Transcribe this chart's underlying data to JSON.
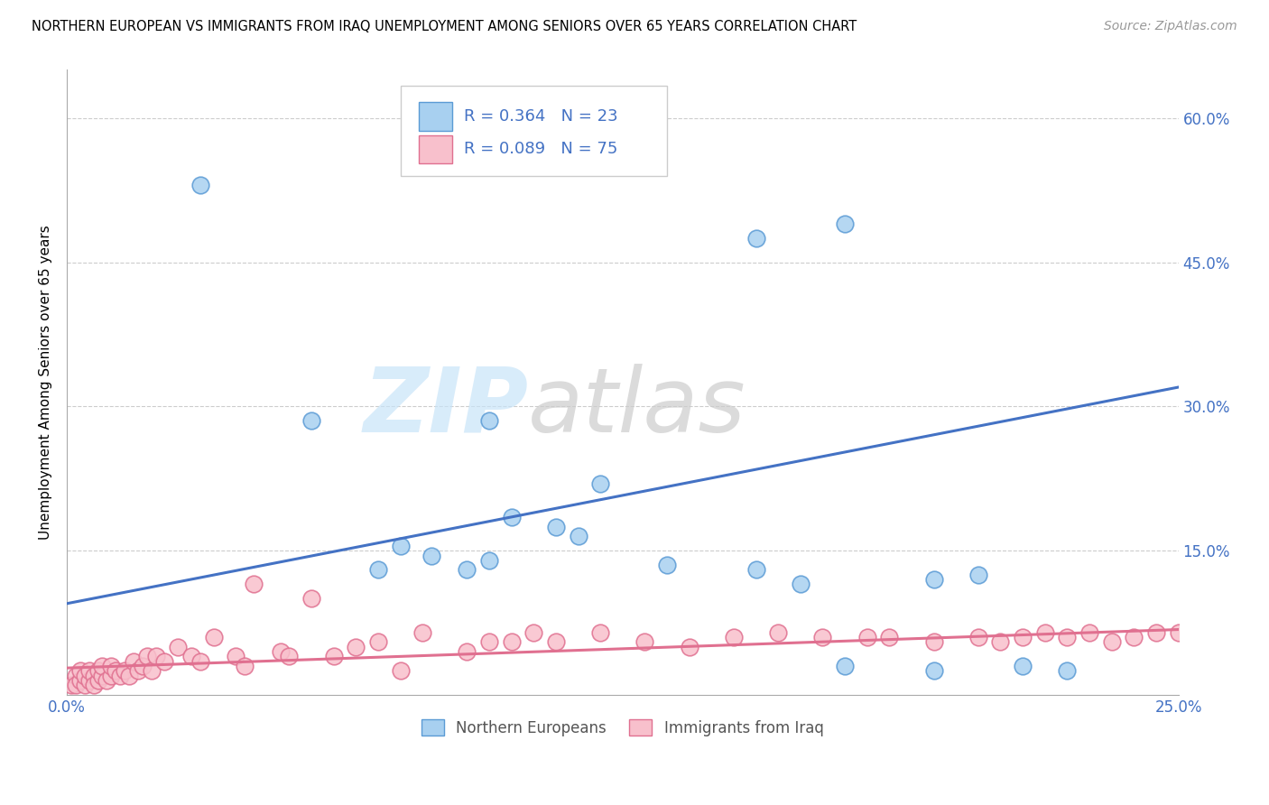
{
  "title": "NORTHERN EUROPEAN VS IMMIGRANTS FROM IRAQ UNEMPLOYMENT AMONG SENIORS OVER 65 YEARS CORRELATION CHART",
  "source": "Source: ZipAtlas.com",
  "ylabel": "Unemployment Among Seniors over 65 years",
  "xlim": [
    0.0,
    0.25
  ],
  "ylim": [
    0.0,
    0.65
  ],
  "yticks_right": [
    0.15,
    0.3,
    0.45,
    0.6
  ],
  "ytick_right_labels": [
    "15.0%",
    "30.0%",
    "45.0%",
    "60.0%"
  ],
  "color_blue": "#A8D0F0",
  "color_blue_edge": "#5B9BD5",
  "color_blue_line": "#4472C4",
  "color_pink": "#F8C0CC",
  "color_pink_edge": "#E07090",
  "color_pink_line": "#E07090",
  "blue_scatter_x": [
    0.03,
    0.155,
    0.175,
    0.055,
    0.095,
    0.07,
    0.075,
    0.082,
    0.09,
    0.095,
    0.1,
    0.11,
    0.115,
    0.12,
    0.135,
    0.155,
    0.165,
    0.195,
    0.205,
    0.175,
    0.195,
    0.215,
    0.225
  ],
  "blue_scatter_y": [
    0.53,
    0.475,
    0.49,
    0.285,
    0.285,
    0.13,
    0.155,
    0.145,
    0.13,
    0.14,
    0.185,
    0.175,
    0.165,
    0.22,
    0.135,
    0.13,
    0.115,
    0.12,
    0.125,
    0.03,
    0.025,
    0.03,
    0.025
  ],
  "pink_scatter_x": [
    0.001,
    0.002,
    0.002,
    0.003,
    0.003,
    0.004,
    0.004,
    0.005,
    0.005,
    0.006,
    0.006,
    0.007,
    0.007,
    0.008,
    0.008,
    0.009,
    0.01,
    0.01,
    0.011,
    0.012,
    0.013,
    0.014,
    0.015,
    0.016,
    0.017,
    0.018,
    0.019,
    0.02,
    0.022,
    0.025,
    0.028,
    0.03,
    0.033,
    0.038,
    0.04,
    0.042,
    0.048,
    0.05,
    0.055,
    0.06,
    0.065,
    0.07,
    0.075,
    0.08,
    0.09,
    0.095,
    0.1,
    0.105,
    0.11,
    0.12,
    0.13,
    0.14,
    0.15,
    0.16,
    0.17,
    0.18,
    0.185,
    0.195,
    0.205,
    0.21,
    0.215,
    0.22,
    0.225,
    0.23,
    0.235,
    0.24,
    0.245,
    0.25
  ],
  "pink_scatter_y": [
    0.01,
    0.02,
    0.01,
    0.015,
    0.025,
    0.01,
    0.02,
    0.015,
    0.025,
    0.02,
    0.01,
    0.015,
    0.025,
    0.02,
    0.03,
    0.015,
    0.02,
    0.03,
    0.025,
    0.02,
    0.025,
    0.02,
    0.035,
    0.025,
    0.03,
    0.04,
    0.025,
    0.04,
    0.035,
    0.05,
    0.04,
    0.035,
    0.06,
    0.04,
    0.03,
    0.115,
    0.045,
    0.04,
    0.1,
    0.04,
    0.05,
    0.055,
    0.025,
    0.065,
    0.045,
    0.055,
    0.055,
    0.065,
    0.055,
    0.065,
    0.055,
    0.05,
    0.06,
    0.065,
    0.06,
    0.06,
    0.06,
    0.055,
    0.06,
    0.055,
    0.06,
    0.065,
    0.06,
    0.065,
    0.055,
    0.06,
    0.065,
    0.065
  ],
  "blue_line_x": [
    0.0,
    0.25
  ],
  "blue_line_y": [
    0.095,
    0.32
  ],
  "pink_line_x": [
    0.0,
    0.25
  ],
  "pink_line_y": [
    0.028,
    0.068
  ]
}
